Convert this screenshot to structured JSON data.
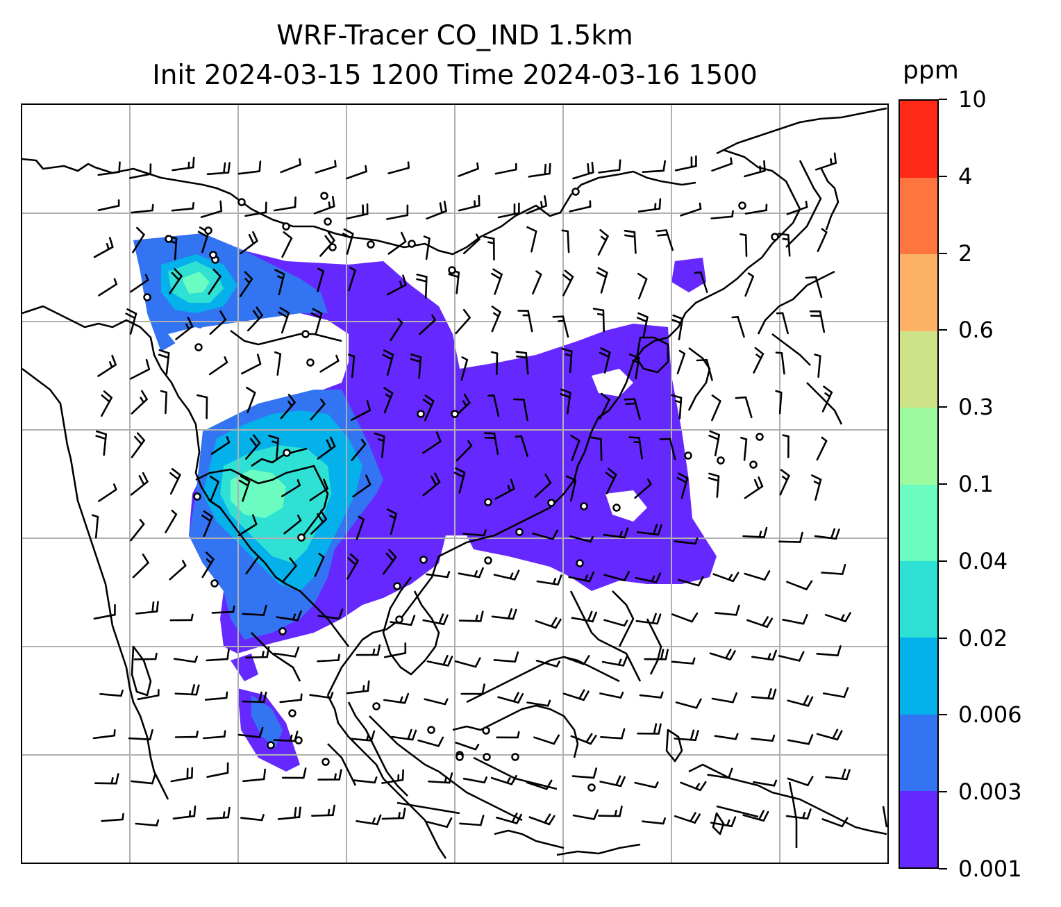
{
  "title": {
    "line1": "WRF-Tracer CO_IND 1.5km",
    "line2": "Init 2024-03-15 1200 Time 2024-03-16 1500"
  },
  "colorbar": {
    "unit": "ppm",
    "levels": [
      "0.001",
      "0.003",
      "0.006",
      "0.02",
      "0.04",
      "0.1",
      "0.3",
      "0.6",
      "2",
      "4",
      "10"
    ],
    "colors": [
      "#6528ff",
      "#3374f2",
      "#04b1ea",
      "#2fe0d5",
      "#6afcc0",
      "#9bfb9e",
      "#cee288",
      "#fdb164",
      "#ff7540",
      "#ff2917"
    ]
  },
  "map": {
    "gridlines": true,
    "grid_color": "#b0b0b0",
    "coastline_color": "#000000",
    "wind_barbs": true,
    "calm_markers": true
  }
}
